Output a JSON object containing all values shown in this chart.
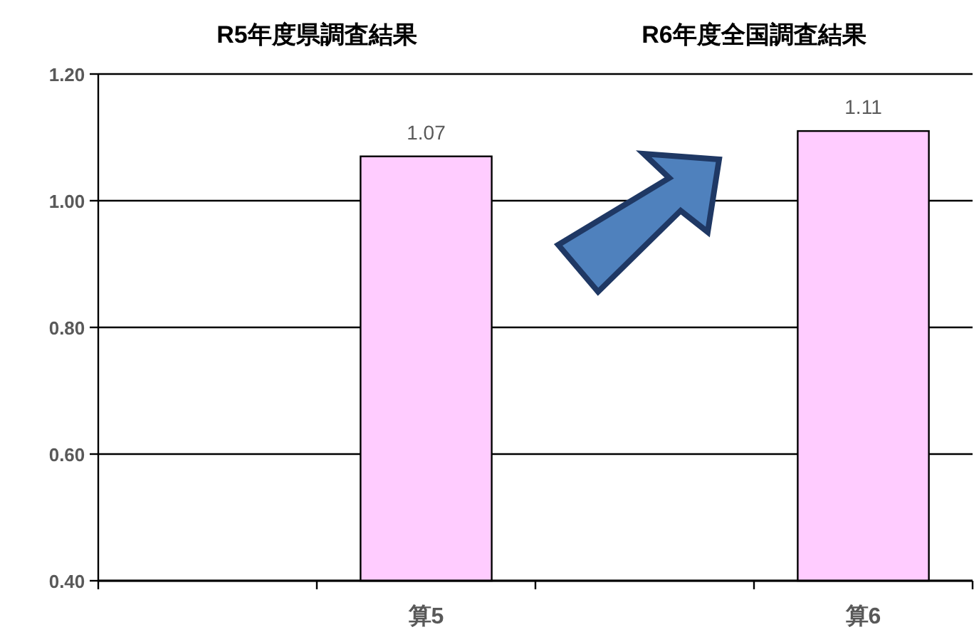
{
  "chart_data": {
    "type": "bar",
    "annotations": [
      "R5年度県調査結果",
      "R6年度全国調査結果"
    ],
    "categories": [
      null,
      "算5",
      null,
      "算6"
    ],
    "values": [
      null,
      1.07,
      null,
      1.11
    ],
    "color": "#ffccff",
    "data_labels": true,
    "ylim": [
      0.4,
      1.2
    ],
    "yticks": [
      {
        "value": 0.4,
        "label": "0.40"
      },
      {
        "value": 0.6,
        "label": "0.60"
      },
      {
        "value": 0.8,
        "label": "0.80"
      },
      {
        "value": 1.0,
        "label": "1.00"
      },
      {
        "value": 1.2,
        "label": "1.20"
      }
    ],
    "grid": "y"
  }
}
